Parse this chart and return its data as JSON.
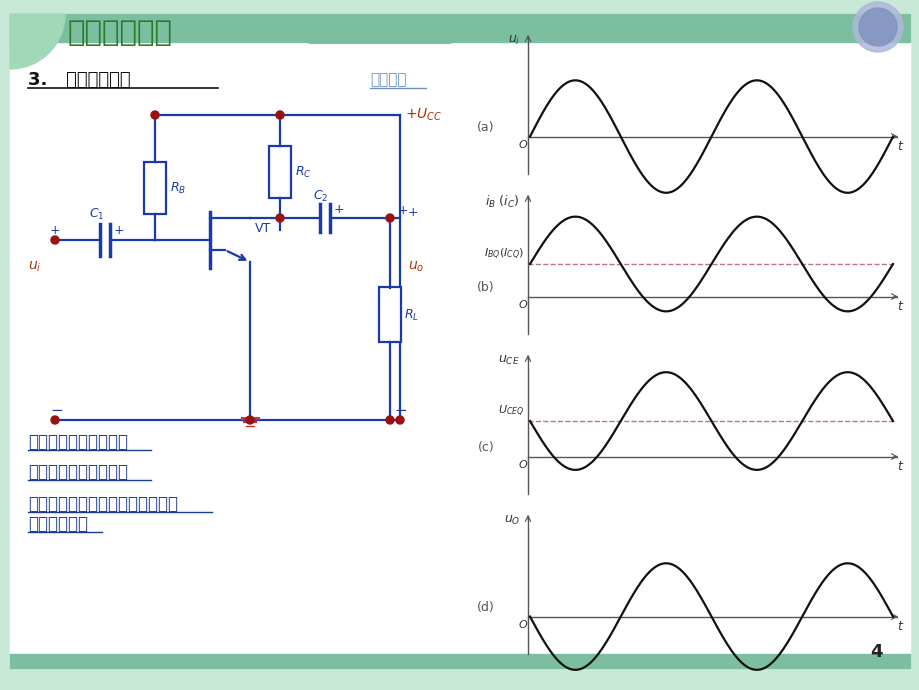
{
  "bg_outer": "#c8e8d8",
  "bg_inner": "#ffffff",
  "header_color": "#7bbfa0",
  "corner_wedge_color": "#a0d8b8",
  "circle_outer": "#b0b8d8",
  "circle_inner": "#8090c0",
  "title_text": "模拟电子技术",
  "title_color": "#2a7a2a",
  "section_text": "3.   基本工作原理",
  "section_color": "#111111",
  "link_text": "动画演示",
  "link_color": "#7090c0",
  "circuit_color": "#1a3aaa",
  "dot_color": "#991111",
  "red_text_color": "#aa3300",
  "ground_color": "#cc3333",
  "text_items": [
    "直流量用大写字母表示",
    "交流量用小写字母表示",
    "交直流共存量用小写字母加大写字",
    "母作脚标表示"
  ],
  "text_color": "#1a3a8a",
  "axis_color": "#555555",
  "wave_color": "#111111",
  "dash_color": "#c07090",
  "page_num": "4",
  "panel_a_label": "(a)",
  "panel_b_label": "(b)",
  "panel_c_label": "(c)",
  "panel_d_label": "(d)"
}
